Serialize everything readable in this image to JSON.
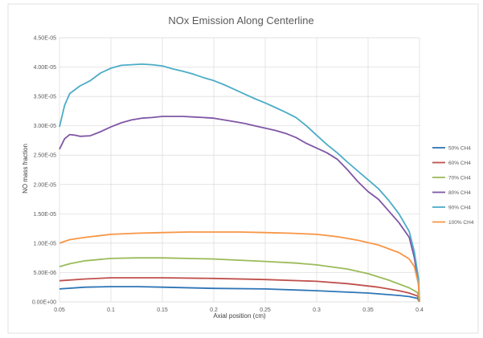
{
  "chart_data": {
    "type": "line",
    "title": "NOx Emission Along Centerline",
    "xlabel": "Axial position (cm)",
    "ylabel": "NO mass fraction",
    "xlim": [
      0.05,
      0.4
    ],
    "ylim": [
      0,
      4.5e-05
    ],
    "x_ticks": [
      0.05,
      0.1,
      0.15,
      0.2,
      0.25,
      0.3,
      0.35,
      0.4
    ],
    "x_tick_labels": [
      "0.05",
      "0.1",
      "0.15",
      "0.2",
      "0.25",
      "0.3",
      "0.35",
      "0.4"
    ],
    "y_ticks": [
      0,
      5e-06,
      1e-05,
      1.5e-05,
      2e-05,
      2.5e-05,
      3e-05,
      3.5e-05,
      4e-05,
      4.5e-05
    ],
    "y_tick_labels": [
      "0.00E+00",
      "5.00E-06",
      "1.00E-05",
      "1.50E-05",
      "2.00E-05",
      "2.50E-05",
      "3.00E-05",
      "3.50E-05",
      "4.00E-05",
      "4.50E-05"
    ],
    "grid": true,
    "legend_position": "right",
    "series": [
      {
        "name": "50% CH4",
        "color": "#2e75b6",
        "x": [
          0.05,
          0.075,
          0.1,
          0.125,
          0.15,
          0.2,
          0.25,
          0.3,
          0.35,
          0.38,
          0.39,
          0.398,
          0.4
        ],
        "y": [
          2.2e-06,
          2.5e-06,
          2.6e-06,
          2.6e-06,
          2.5e-06,
          2.3e-06,
          2.2e-06,
          1.9e-06,
          1.5e-06,
          1.1e-06,
          9e-07,
          6e-07,
          0
        ]
      },
      {
        "name": "60% CH4",
        "color": "#c0504d",
        "x": [
          0.05,
          0.075,
          0.1,
          0.125,
          0.15,
          0.2,
          0.25,
          0.3,
          0.33,
          0.36,
          0.38,
          0.39,
          0.398,
          0.4
        ],
        "y": [
          3.6e-06,
          3.9e-06,
          4.1e-06,
          4.1e-06,
          4.1e-06,
          4e-06,
          3.8e-06,
          3.5e-06,
          3.1e-06,
          2.5e-06,
          1.9e-06,
          1.5e-06,
          1e-06,
          0
        ]
      },
      {
        "name": "70% CH4",
        "color": "#9bbb59",
        "x": [
          0.05,
          0.06,
          0.075,
          0.1,
          0.125,
          0.15,
          0.2,
          0.25,
          0.28,
          0.3,
          0.33,
          0.35,
          0.37,
          0.39,
          0.398,
          0.4
        ],
        "y": [
          6e-06,
          6.5e-06,
          7e-06,
          7.4e-06,
          7.5e-06,
          7.5e-06,
          7.3e-06,
          6.9e-06,
          6.6e-06,
          6.3e-06,
          5.6e-06,
          4.8e-06,
          3.7e-06,
          2.4e-06,
          1.6e-06,
          0
        ]
      },
      {
        "name": "80% CH4",
        "color": "#7f56a5",
        "x": [
          0.05,
          0.055,
          0.06,
          0.065,
          0.07,
          0.08,
          0.09,
          0.1,
          0.11,
          0.12,
          0.13,
          0.14,
          0.15,
          0.16,
          0.17,
          0.18,
          0.19,
          0.2,
          0.21,
          0.22,
          0.23,
          0.24,
          0.25,
          0.26,
          0.27,
          0.28,
          0.29,
          0.3,
          0.31,
          0.32,
          0.33,
          0.34,
          0.35,
          0.36,
          0.37,
          0.38,
          0.39,
          0.395,
          0.399,
          0.4
        ],
        "y": [
          2.6e-05,
          2.78e-05,
          2.85e-05,
          2.84e-05,
          2.82e-05,
          2.83e-05,
          2.9e-05,
          2.98e-05,
          3.05e-05,
          3.1e-05,
          3.13e-05,
          3.14e-05,
          3.16e-05,
          3.16e-05,
          3.16e-05,
          3.15e-05,
          3.14e-05,
          3.13e-05,
          3.1e-05,
          3.07e-05,
          3.04e-05,
          3e-05,
          2.96e-05,
          2.92e-05,
          2.87e-05,
          2.8e-05,
          2.7e-05,
          2.62e-05,
          2.54e-05,
          2.43e-05,
          2.25e-05,
          2.05e-05,
          1.88e-05,
          1.75e-05,
          1.55e-05,
          1.35e-05,
          1.1e-05,
          7.5e-06,
          3e-06,
          0
        ]
      },
      {
        "name": "90% CH4",
        "color": "#4bacc6",
        "x": [
          0.05,
          0.055,
          0.06,
          0.07,
          0.08,
          0.09,
          0.1,
          0.11,
          0.12,
          0.13,
          0.14,
          0.15,
          0.16,
          0.17,
          0.18,
          0.19,
          0.2,
          0.21,
          0.22,
          0.23,
          0.24,
          0.25,
          0.26,
          0.27,
          0.28,
          0.29,
          0.3,
          0.31,
          0.32,
          0.33,
          0.34,
          0.35,
          0.36,
          0.37,
          0.38,
          0.39,
          0.395,
          0.399,
          0.4
        ],
        "y": [
          2.98e-05,
          3.35e-05,
          3.55e-05,
          3.68e-05,
          3.77e-05,
          3.9e-05,
          3.98e-05,
          4.03e-05,
          4.04e-05,
          4.05e-05,
          4.04e-05,
          4.02e-05,
          3.97e-05,
          3.93e-05,
          3.88e-05,
          3.82e-05,
          3.77e-05,
          3.7e-05,
          3.62e-05,
          3.54e-05,
          3.46e-05,
          3.39e-05,
          3.31e-05,
          3.23e-05,
          3.14e-05,
          3e-05,
          2.84e-05,
          2.68e-05,
          2.54e-05,
          2.38e-05,
          2.23e-05,
          2.08e-05,
          1.93e-05,
          1.73e-05,
          1.5e-05,
          1.2e-05,
          8.5e-06,
          4e-06,
          0
        ]
      },
      {
        "name": "100% CH4",
        "color": "#f79646",
        "x": [
          0.05,
          0.06,
          0.075,
          0.1,
          0.125,
          0.15,
          0.175,
          0.2,
          0.225,
          0.25,
          0.275,
          0.3,
          0.32,
          0.34,
          0.36,
          0.38,
          0.39,
          0.395,
          0.399,
          0.4
        ],
        "y": [
          1e-05,
          1.06e-05,
          1.1e-05,
          1.15e-05,
          1.17e-05,
          1.18e-05,
          1.19e-05,
          1.19e-05,
          1.19e-05,
          1.18e-05,
          1.17e-05,
          1.15e-05,
          1.11e-05,
          1.05e-05,
          9.7e-06,
          8.4e-06,
          7.3e-06,
          6e-06,
          3e-06,
          0
        ]
      }
    ]
  }
}
